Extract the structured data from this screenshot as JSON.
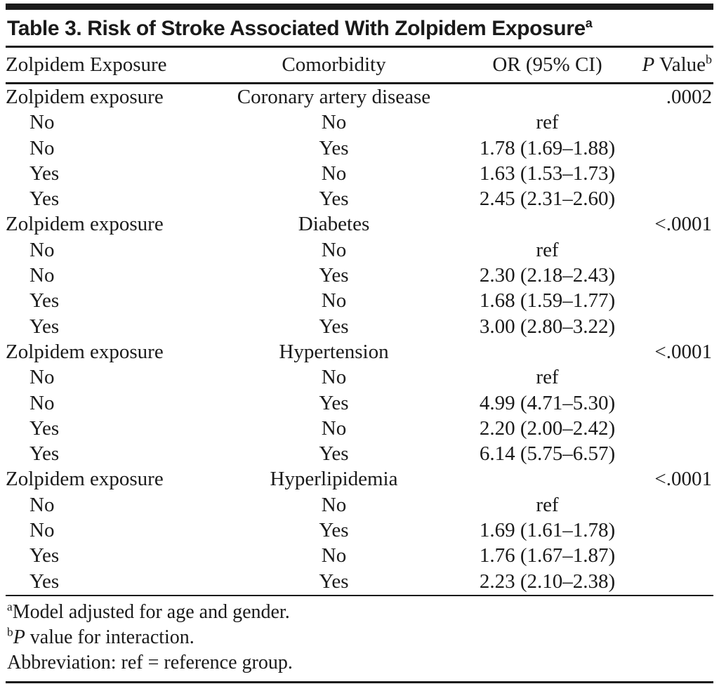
{
  "table": {
    "title": {
      "text": "Table 3. Risk of Stroke Associated With Zolpidem Exposure",
      "sup": "a"
    },
    "header": {
      "exposure": "Zolpidem Exposure",
      "comorbidity": "Comorbidity",
      "or_ci": "OR (95% CI)",
      "p_value_italic": "P",
      "p_value_rest": " Value",
      "p_value_sup": "b"
    },
    "groups": [
      {
        "label": "Zolpidem exposure",
        "comorbidity": "Coronary artery disease",
        "p_value": ".0002",
        "rows": [
          {
            "exposure": "No",
            "comorbidity": "No",
            "or_ci": "ref"
          },
          {
            "exposure": "No",
            "comorbidity": "Yes",
            "or_ci": "1.78 (1.69–1.88)"
          },
          {
            "exposure": "Yes",
            "comorbidity": "No",
            "or_ci": "1.63 (1.53–1.73)"
          },
          {
            "exposure": "Yes",
            "comorbidity": "Yes",
            "or_ci": "2.45 (2.31–2.60)"
          }
        ]
      },
      {
        "label": "Zolpidem exposure",
        "comorbidity": "Diabetes",
        "p_value": "<.0001",
        "rows": [
          {
            "exposure": "No",
            "comorbidity": "No",
            "or_ci": "ref"
          },
          {
            "exposure": "No",
            "comorbidity": "Yes",
            "or_ci": "2.30 (2.18–2.43)"
          },
          {
            "exposure": "Yes",
            "comorbidity": "No",
            "or_ci": "1.68 (1.59–1.77)"
          },
          {
            "exposure": "Yes",
            "comorbidity": "Yes",
            "or_ci": "3.00 (2.80–3.22)"
          }
        ]
      },
      {
        "label": "Zolpidem exposure",
        "comorbidity": "Hypertension",
        "p_value": "<.0001",
        "rows": [
          {
            "exposure": "No",
            "comorbidity": "No",
            "or_ci": "ref"
          },
          {
            "exposure": "No",
            "comorbidity": "Yes",
            "or_ci": "4.99 (4.71–5.30)"
          },
          {
            "exposure": "Yes",
            "comorbidity": "No",
            "or_ci": "2.20 (2.00–2.42)"
          },
          {
            "exposure": "Yes",
            "comorbidity": "Yes",
            "or_ci": "6.14 (5.75–6.57)"
          }
        ]
      },
      {
        "label": "Zolpidem exposure",
        "comorbidity": "Hyperlipidemia",
        "p_value": "<.0001",
        "rows": [
          {
            "exposure": "No",
            "comorbidity": "No",
            "or_ci": "ref"
          },
          {
            "exposure": "No",
            "comorbidity": "Yes",
            "or_ci": "1.69 (1.61–1.78)"
          },
          {
            "exposure": "Yes",
            "comorbidity": "No",
            "or_ci": "1.76 (1.67–1.87)"
          },
          {
            "exposure": "Yes",
            "comorbidity": "Yes",
            "or_ci": "2.23 (2.10–2.38)"
          }
        ]
      }
    ],
    "footnotes": [
      {
        "sup": "a",
        "parts": [
          {
            "t": "Model adjusted for age and gender."
          }
        ]
      },
      {
        "sup": "b",
        "parts": [
          {
            "t": "P",
            "italic": true
          },
          {
            "t": " value for interaction."
          }
        ]
      },
      {
        "sup": "",
        "parts": [
          {
            "t": "Abbreviation: ref = reference group."
          }
        ]
      }
    ],
    "colors": {
      "text": "#1a1a1a",
      "rule": "#1a1a1a",
      "background": "#ffffff"
    }
  }
}
